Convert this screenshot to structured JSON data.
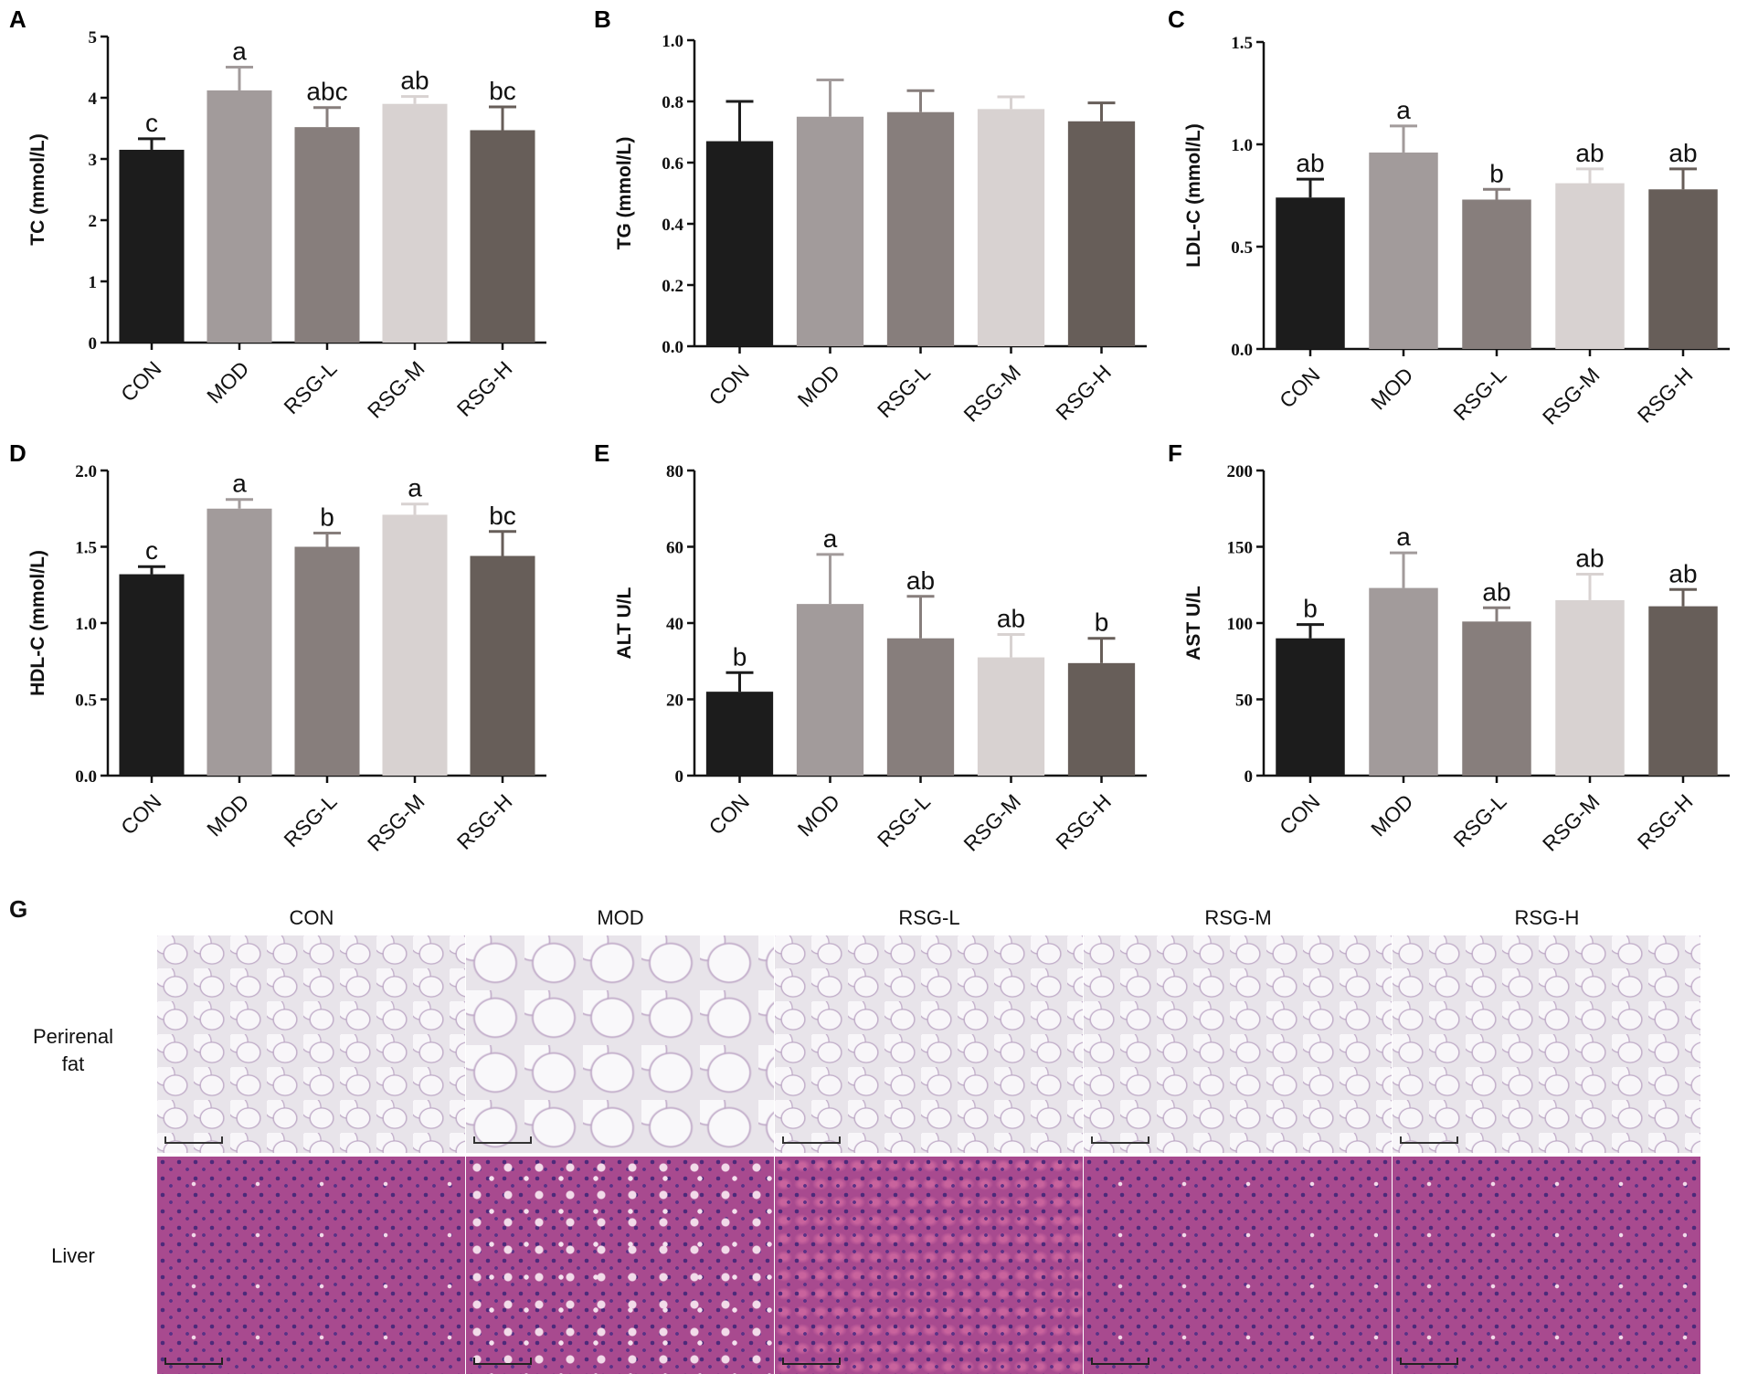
{
  "chart_data": [
    {
      "panel": "A",
      "type": "bar",
      "categories": [
        "CON",
        "MOD",
        "RSG-L",
        "RSG-M",
        "RSG-H"
      ],
      "values": [
        3.15,
        4.12,
        3.52,
        3.9,
        3.47
      ],
      "errors": [
        0.18,
        0.38,
        0.32,
        0.12,
        0.38
      ],
      "sig_letters": [
        "c",
        "a",
        "abc",
        "ab",
        "bc"
      ],
      "ylabel": "TC (mmol/L)",
      "ylim": [
        0,
        5
      ],
      "yticks": [
        "0",
        "1",
        "2",
        "3",
        "4",
        "5"
      ],
      "colors": [
        "#1c1c1c",
        "#a29b9b",
        "#877e7c",
        "#d8d2d1",
        "#675e59"
      ]
    },
    {
      "panel": "B",
      "type": "bar",
      "categories": [
        "CON",
        "MOD",
        "RSG-L",
        "RSG-M",
        "RSG-H"
      ],
      "values": [
        0.67,
        0.75,
        0.765,
        0.775,
        0.735
      ],
      "errors": [
        0.13,
        0.12,
        0.07,
        0.04,
        0.06
      ],
      "sig_letters": [
        "",
        "",
        "",
        "",
        ""
      ],
      "ylabel": "TG (mmol/L)",
      "ylim": [
        0,
        1.0
      ],
      "yticks": [
        "0.0",
        "0.2",
        "0.4",
        "0.6",
        "0.8",
        "1.0"
      ],
      "colors": [
        "#1c1c1c",
        "#a29b9b",
        "#877e7c",
        "#d8d2d1",
        "#675e59"
      ]
    },
    {
      "panel": "C",
      "type": "bar",
      "categories": [
        "CON",
        "MOD",
        "RSG-L",
        "RSG-M",
        "RSG-H"
      ],
      "values": [
        0.74,
        0.96,
        0.73,
        0.81,
        0.78
      ],
      "errors": [
        0.09,
        0.13,
        0.05,
        0.07,
        0.1
      ],
      "sig_letters": [
        "ab",
        "a",
        "b",
        "ab",
        "ab"
      ],
      "ylabel": "LDL-C (mmol/L)",
      "ylim": [
        0,
        1.5
      ],
      "yticks": [
        "0.0",
        "0.5",
        "1.0",
        "1.5"
      ],
      "colors": [
        "#1c1c1c",
        "#a29b9b",
        "#877e7c",
        "#d8d2d1",
        "#675e59"
      ]
    },
    {
      "panel": "D",
      "type": "bar",
      "categories": [
        "CON",
        "MOD",
        "RSG-L",
        "RSG-M",
        "RSG-H"
      ],
      "values": [
        1.32,
        1.75,
        1.5,
        1.71,
        1.44
      ],
      "errors": [
        0.05,
        0.06,
        0.09,
        0.07,
        0.16
      ],
      "sig_letters": [
        "c",
        "a",
        "b",
        "a",
        "bc"
      ],
      "ylabel": "HDL-C (mmol/L)",
      "ylim": [
        0,
        2.0
      ],
      "yticks": [
        "0.0",
        "0.5",
        "1.0",
        "1.5",
        "2.0"
      ],
      "colors": [
        "#1c1c1c",
        "#a29b9b",
        "#877e7c",
        "#d8d2d1",
        "#675e59"
      ]
    },
    {
      "panel": "E",
      "type": "bar",
      "categories": [
        "CON",
        "MOD",
        "RSG-L",
        "RSG-M",
        "RSG-H"
      ],
      "values": [
        22,
        45,
        36,
        31,
        29.5
      ],
      "errors": [
        5,
        13,
        11,
        6,
        6.5
      ],
      "sig_letters": [
        "b",
        "a",
        "ab",
        "ab",
        "b"
      ],
      "ylabel": "ALT U/L",
      "ylim": [
        0,
        80
      ],
      "yticks": [
        "0",
        "20",
        "40",
        "60",
        "80"
      ],
      "colors": [
        "#1c1c1c",
        "#a29b9b",
        "#877e7c",
        "#d8d2d1",
        "#675e59"
      ]
    },
    {
      "panel": "F",
      "type": "bar",
      "categories": [
        "CON",
        "MOD",
        "RSG-L",
        "RSG-M",
        "RSG-H"
      ],
      "values": [
        90,
        123,
        101,
        115,
        111
      ],
      "errors": [
        9,
        23,
        9,
        17,
        11
      ],
      "sig_letters": [
        "b",
        "a",
        "ab",
        "ab",
        "ab"
      ],
      "ylabel": "AST U/L",
      "ylim": [
        0,
        200
      ],
      "yticks": [
        "0",
        "50",
        "100",
        "150",
        "200"
      ],
      "colors": [
        "#1c1c1c",
        "#a29b9b",
        "#877e7c",
        "#d8d2d1",
        "#675e59"
      ]
    }
  ],
  "histology": {
    "panel": "G",
    "columns": [
      "CON",
      "MOD",
      "RSG-L",
      "RSG-M",
      "RSG-H"
    ],
    "rows": [
      {
        "label_line1": "Perirenal",
        "label_line2": "fat"
      },
      {
        "label_line1": "Liver",
        "label_line2": ""
      }
    ]
  }
}
